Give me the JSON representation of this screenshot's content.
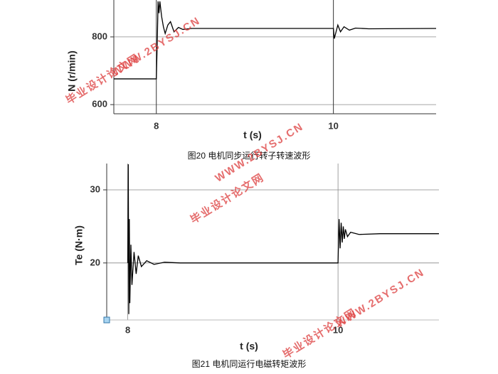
{
  "chart_data": [
    {
      "type": "line",
      "caption": "图20 电机同步运行转子转速波形",
      "xlabel": "t (s)",
      "ylabel": "N (r/min)",
      "x": [
        7.52,
        7.99,
        8.0,
        8.01,
        8.02,
        8.03,
        8.04,
        8.06,
        8.08,
        8.1,
        8.13,
        8.16,
        8.2,
        8.25,
        8.3,
        8.4,
        8.6,
        9.0,
        9.5,
        9.99,
        10.0,
        10.01,
        10.03,
        10.05,
        10.08,
        10.12,
        10.18,
        10.25,
        10.4,
        11.16
      ],
      "values": [
        676,
        676,
        676,
        780,
        905,
        870,
        905,
        860,
        830,
        810,
        835,
        845,
        815,
        828,
        822,
        825,
        825,
        825,
        825,
        825,
        825,
        795,
        815,
        835,
        815,
        830,
        820,
        826,
        824,
        825
      ],
      "color": "#000000",
      "xlim": [
        7.52,
        11.16
      ],
      "ylim": [
        573,
        909
      ],
      "xticks": [
        8,
        10
      ],
      "yticks": [
        600,
        800
      ],
      "grid": true
    },
    {
      "type": "line",
      "caption": "图21 电机同运行电磁转矩波形",
      "xlabel": "t (s)",
      "ylabel": "Te (N·m)",
      "x": [
        8.0,
        8.005,
        8.01,
        8.015,
        8.02,
        8.03,
        8.04,
        8.06,
        8.08,
        8.1,
        8.13,
        8.18,
        8.25,
        8.35,
        8.5,
        9.0,
        9.5,
        10.0,
        10.01,
        10.02,
        10.03,
        10.04,
        10.05,
        10.06,
        10.07,
        10.09,
        10.12,
        10.2,
        10.4,
        10.96
      ],
      "values": [
        20,
        33.5,
        13,
        26,
        14.5,
        22.5,
        17,
        21.5,
        18.5,
        21,
        19.5,
        20.3,
        19.8,
        20.1,
        20,
        20,
        20,
        20,
        26,
        22,
        25.5,
        22.8,
        25,
        23.3,
        24.6,
        23.6,
        24.2,
        23.9,
        24,
        24
      ],
      "color": "#000000",
      "xlim": [
        7.8,
        10.96
      ],
      "ylim": [
        12.2,
        33.6
      ],
      "xticks": [
        8,
        10
      ],
      "yticks": [
        20,
        30
      ],
      "grid": true
    }
  ],
  "watermarks": [
    "毕业设计论文网",
    "WWW.2BYSJ.CN",
    "毕业设计论文网",
    "WWW.2BYSJ.CN",
    "毕业设计论文网",
    "WWW.2BYSJ.CN"
  ]
}
